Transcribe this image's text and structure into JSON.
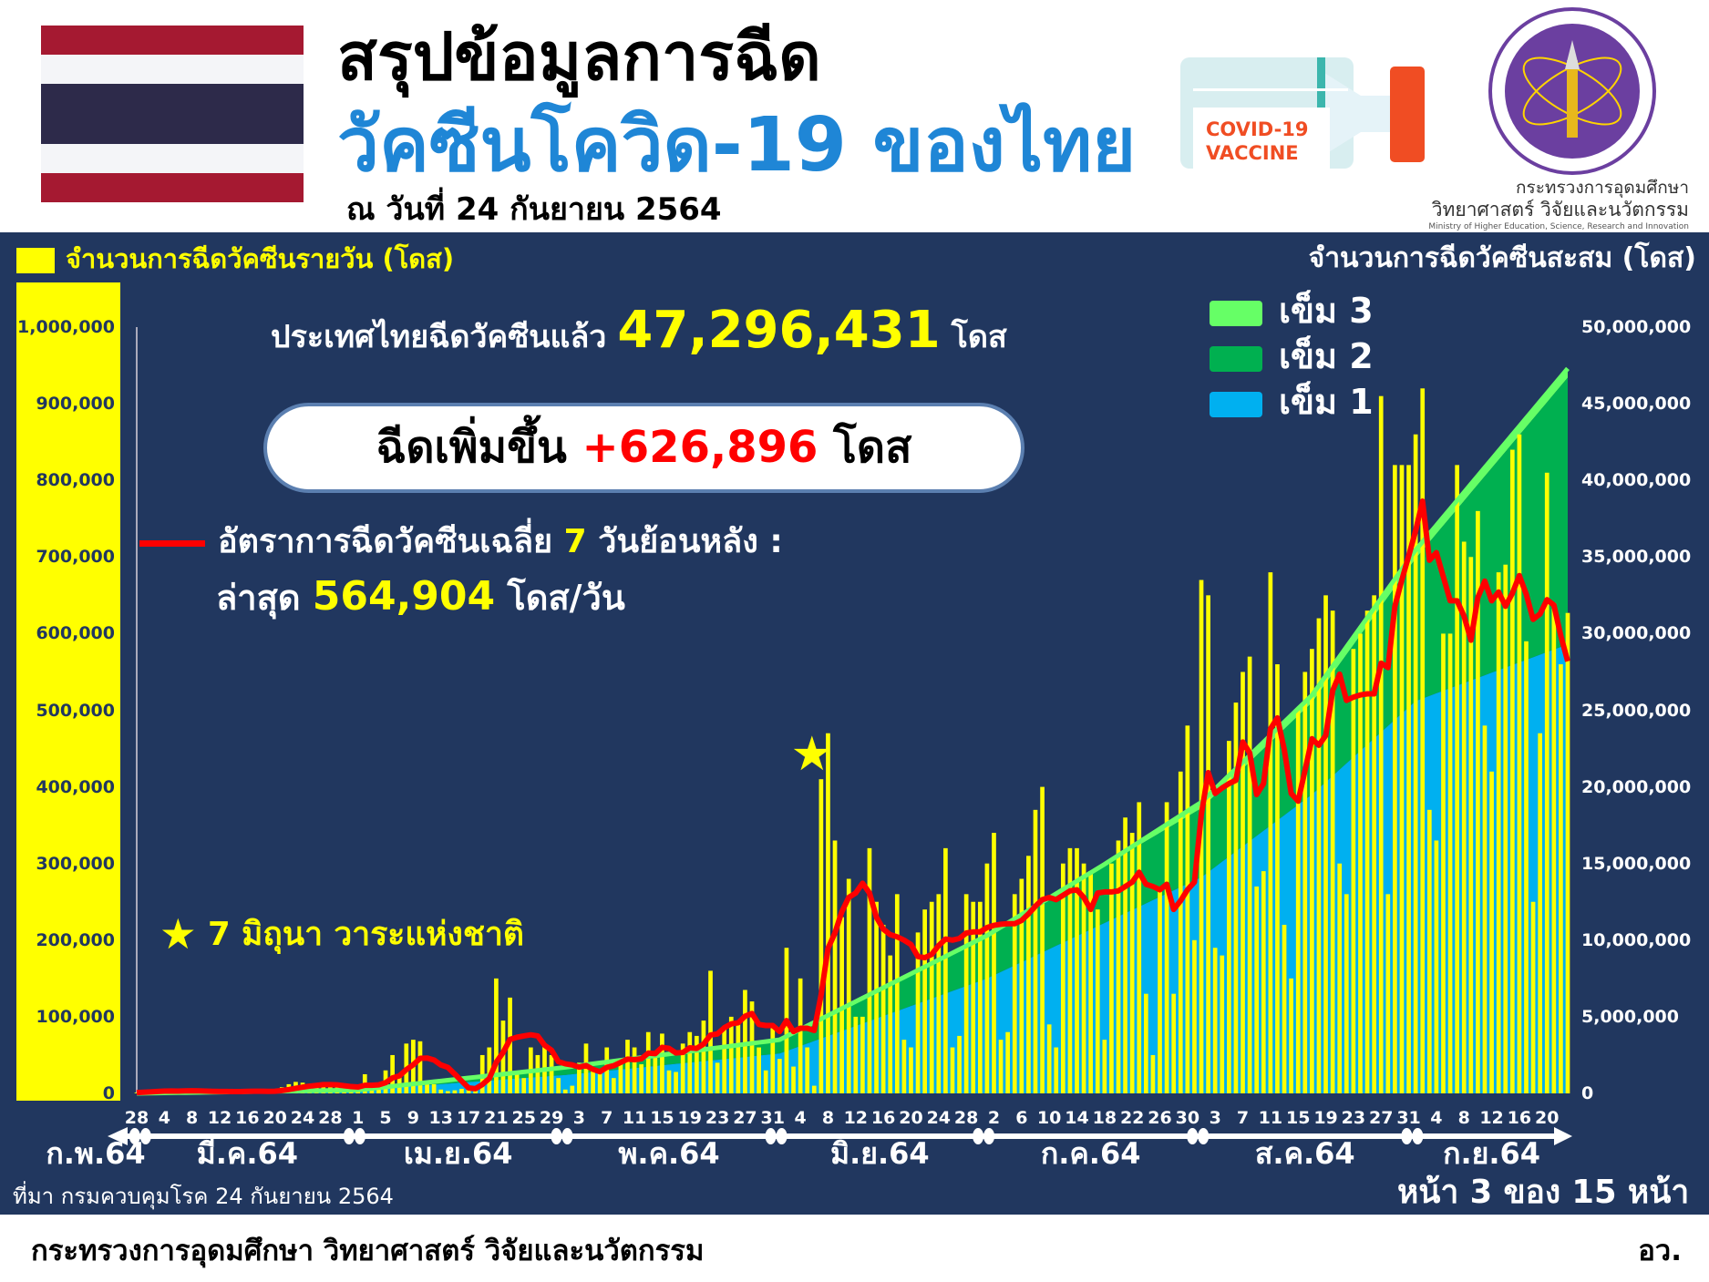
{
  "header": {
    "title_line1": "สรุปข้อมูลการฉีด",
    "title_line2": "วัคซีนโควิด-19 ของไทย",
    "date": "ณ วันที่ 24 กันยายน 2564"
  },
  "vaccine_image": {
    "label_line1": "COVID-19",
    "label_line2": "VACCINE"
  },
  "ministry": {
    "name_line1": "กระทรวงการอุดมศึกษา",
    "name_line2": "วิทยาศาสตร์ วิจัยและนวัตกรรม",
    "name_en": "Ministry of Higher Education, Science, Research and Innovation"
  },
  "summary": {
    "total_prefix": "ประเทศไทยฉีดวัคซีนแล้ว",
    "total_value": "47,296,431",
    "total_unit": "โดส",
    "increase_prefix": "ฉีดเพิ่มขึ้น",
    "increase_value": "+626,896",
    "increase_unit": "โดส",
    "avg_label_a": "อัตราการฉีดวัคซีนเฉลี่ย",
    "avg_label_num": "7",
    "avg_label_b": "วันย้อนหลัง :",
    "latest_prefix": "ล่าสุด",
    "latest_value": "564,904",
    "latest_unit": "โดส/วัน"
  },
  "annotation": {
    "text": "7 มิถุนา วาระแห่งชาติ",
    "date_index": 99
  },
  "source": "ที่มา กรมควบคุมโรค 24 กันยายน 2564",
  "page_indicator": "หน้า 3 ของ 15 หน้า",
  "footer": {
    "ministry": "กระทรวงการอุดมศึกษา วิทยาศาสตร์ วิจัยและนวัตกรรม",
    "abbr": "อว."
  },
  "colors": {
    "navy": "#21375f",
    "daily": "#ffff00",
    "dose1": "#00b0f0",
    "dose2": "#00b050",
    "dose3": "#66ff66",
    "avg": "#ff0000",
    "title_blue": "#1f86d6"
  },
  "chart_data": {
    "type": "bar+area+line",
    "left_axis_title": "จำนวนการฉีดวัคซีนรายวัน (โดส)",
    "right_axis_title": "จำนวนการฉีดวัคซีนสะสม (โดส)",
    "left_ylim": [
      0,
      1000000
    ],
    "right_ylim": [
      0,
      50000000
    ],
    "left_ticks": [
      "0",
      "100,000",
      "200,000",
      "300,000",
      "400,000",
      "500,000",
      "600,000",
      "700,000",
      "800,000",
      "900,000",
      "1,000,000"
    ],
    "right_ticks": [
      "0",
      "5,000,000",
      "10,000,000",
      "15,000,000",
      "20,000,000",
      "25,000,000",
      "30,000,000",
      "35,000,000",
      "40,000,000",
      "45,000,000",
      "50,000,000"
    ],
    "legend": [
      {
        "label": "เข็ม 3",
        "color": "#66ff66"
      },
      {
        "label": "เข็ม 2",
        "color": "#00b050"
      },
      {
        "label": "เข็ม 1",
        "color": "#00b0f0"
      }
    ],
    "x_start": "2021-02-28",
    "x_end": "2021-09-23",
    "x_tick_labels": [
      "28",
      "4",
      "8",
      "12",
      "16",
      "20",
      "24",
      "28",
      "1",
      "5",
      "9",
      "13",
      "17",
      "21",
      "25",
      "29",
      "3",
      "7",
      "11",
      "15",
      "19",
      "23",
      "27",
      "31",
      "4",
      "8",
      "12",
      "16",
      "20",
      "24",
      "28",
      "2",
      "6",
      "10",
      "14",
      "18",
      "22",
      "26",
      "30",
      "3",
      "7",
      "11",
      "15",
      "19",
      "23",
      "27",
      "31",
      "4",
      "8",
      "12",
      "16",
      "20"
    ],
    "months": [
      {
        "label": "ก.พ.64",
        "start": 0,
        "end": 0
      },
      {
        "label": "มี.ค.64",
        "start": 1,
        "end": 31
      },
      {
        "label": "เม.ย.64",
        "start": 32,
        "end": 61
      },
      {
        "label": "พ.ค.64",
        "start": 62,
        "end": 92
      },
      {
        "label": "มิ.ย.64",
        "start": 93,
        "end": 122
      },
      {
        "label": "ก.ค.64",
        "start": 123,
        "end": 153
      },
      {
        "label": "ส.ค.64",
        "start": 154,
        "end": 184
      },
      {
        "label": "ก.ย.64",
        "start": 185,
        "end": 207
      }
    ],
    "daily_doses_thousands": [
      1,
      2,
      3,
      4,
      5,
      4,
      2,
      3,
      3,
      2,
      2,
      3,
      3,
      2,
      2,
      3,
      4,
      3,
      3,
      2,
      3,
      8,
      12,
      15,
      14,
      12,
      9,
      10,
      8,
      10,
      7,
      6,
      8,
      25,
      10,
      12,
      30,
      50,
      25,
      65,
      70,
      68,
      15,
      12,
      5,
      3,
      4,
      6,
      5,
      8,
      50,
      60,
      150,
      95,
      125,
      25,
      20,
      60,
      50,
      65,
      50,
      20,
      5,
      10,
      40,
      65,
      30,
      28,
      60,
      20,
      40,
      70,
      60,
      38,
      80,
      55,
      78,
      30,
      28,
      65,
      80,
      75,
      95,
      160,
      40,
      85,
      100,
      90,
      135,
      120,
      60,
      30,
      85,
      45,
      190,
      35,
      150,
      60,
      10,
      410,
      470,
      330,
      230,
      280,
      100,
      100,
      320,
      250,
      220,
      180,
      260,
      70,
      60,
      210,
      240,
      250,
      260,
      320,
      60,
      75,
      260,
      250,
      250,
      300,
      340,
      70,
      80,
      260,
      280,
      310,
      370,
      400,
      90,
      60,
      300,
      320,
      320,
      300,
      290,
      240,
      70,
      300,
      330,
      360,
      340,
      380,
      130,
      50,
      270,
      380,
      130,
      420,
      480,
      200,
      670,
      650,
      190,
      180,
      460,
      510,
      550,
      570,
      270,
      290,
      680,
      560,
      220,
      150,
      500,
      550,
      580,
      620,
      650,
      630,
      300,
      260,
      580,
      600,
      630,
      650,
      910,
      260,
      820,
      820,
      820,
      860,
      920,
      370,
      330,
      600,
      600,
      820,
      720,
      700,
      760,
      480,
      420,
      680,
      690,
      840,
      860,
      590,
      250,
      470,
      810,
      640,
      560,
      627
    ],
    "cumulative_millions_checkpoints": {
      "dose1": [
        [
          0,
          0
        ],
        [
          32,
          0.2
        ],
        [
          62,
          1.2
        ],
        [
          93,
          2.6
        ],
        [
          123,
          7.5
        ],
        [
          154,
          14.1
        ],
        [
          170,
          19.5
        ],
        [
          185,
          25.6
        ],
        [
          207,
          29.3
        ]
      ],
      "dose2": [
        [
          0,
          0
        ],
        [
          32,
          0.02
        ],
        [
          62,
          0.5
        ],
        [
          93,
          0.9
        ],
        [
          123,
          2.8
        ],
        [
          154,
          4.5
        ],
        [
          170,
          6.0
        ],
        [
          185,
          9.3
        ],
        [
          207,
          17.4
        ]
      ],
      "dose3": [
        [
          0,
          0
        ],
        [
          123,
          0
        ],
        [
          140,
          0.1
        ],
        [
          154,
          0.4
        ],
        [
          185,
          0.55
        ],
        [
          207,
          0.6
        ]
      ]
    },
    "avg_series": "7-day rolling average of daily doses"
  }
}
